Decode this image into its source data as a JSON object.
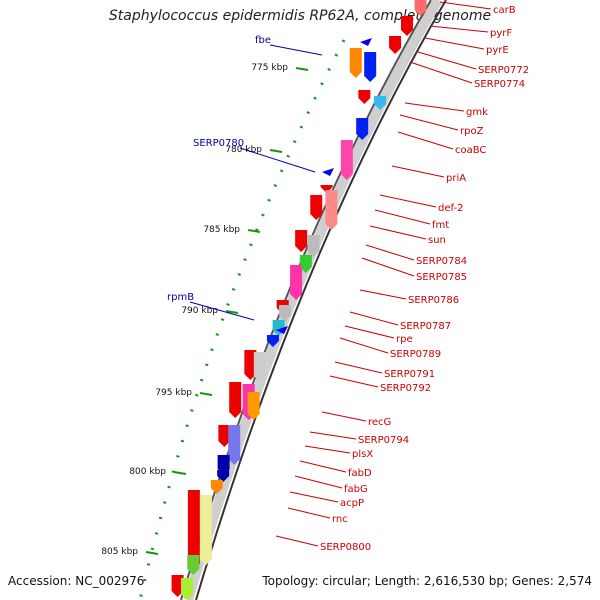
{
  "title": "Staphylococcus epidermidis RP62A, complete genome",
  "footer": {
    "accession": "Accession: NC_002976",
    "summary": "Topology: circular; Length: 2,616,530 bp; Genes: 2,574"
  },
  "colors": {
    "forward_gene": "#ee0000",
    "reverse_gene": "#0000ee",
    "backbone": "#555555",
    "tick": "#119911",
    "gene_label_right": "#cc0000",
    "gene_label_left": "#0000aa"
  },
  "scale_ticks": [
    "775 kbp",
    "780 kbp",
    "785 kbp",
    "790 kbp",
    "795 kbp",
    "800 kbp",
    "805 kbp"
  ],
  "genes_right": [
    "carB",
    "pyrF",
    "pyrE",
    "SERP0772",
    "SERP0774",
    "gmk",
    "rpoZ",
    "coaBC",
    "priA",
    "def-2",
    "fmt",
    "sun",
    "SERP0784",
    "SERP0785",
    "SERP0786",
    "SERP0787",
    "rpe",
    "SERP0789",
    "SERP0791",
    "SERP0792",
    "recG",
    "SERP0794",
    "plsX",
    "fabD",
    "fabG",
    "acpP",
    "rnc",
    "SERP0800"
  ],
  "genes_left": [
    "fbe",
    "SERP0780",
    "rpmB"
  ]
}
